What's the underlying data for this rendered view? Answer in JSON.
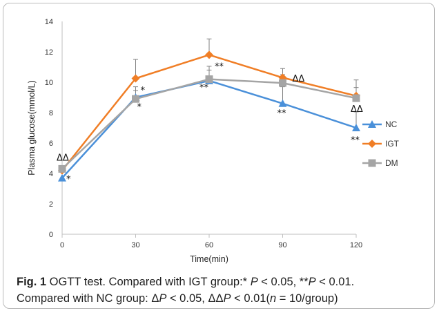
{
  "chart_data": {
    "type": "line",
    "x": [
      0,
      30,
      60,
      90,
      120
    ],
    "xlabel": "Time(min)",
    "ylabel": "Plasma glucose(mmol/L)",
    "ylim": [
      0,
      14
    ],
    "yticks": [
      0,
      2,
      4,
      6,
      8,
      10,
      12,
      14
    ],
    "xticks": [
      0,
      30,
      60,
      90,
      120
    ],
    "legend_position": "right",
    "series": [
      {
        "name": "NC",
        "color": "#4a90d9",
        "marker": "triangle",
        "values": [
          3.7,
          9.0,
          10.1,
          8.6,
          7.0
        ],
        "errors": [
          0.0,
          0.7,
          0.7,
          1.1,
          1.05
        ]
      },
      {
        "name": "IGT",
        "color": "#f07e26",
        "marker": "diamond",
        "values": [
          4.2,
          10.25,
          11.8,
          10.3,
          9.1
        ],
        "errors": [
          0.0,
          1.25,
          1.05,
          0.6,
          0.55
        ]
      },
      {
        "name": "DM",
        "color": "#a5a5a5",
        "marker": "square",
        "values": [
          4.3,
          8.9,
          10.2,
          9.95,
          8.95
        ],
        "errors": [
          0.0,
          0.55,
          0.85,
          0.55,
          1.2
        ]
      }
    ],
    "annotations": [
      {
        "text": "ΔΔ",
        "x": 0,
        "y": 4.3
      },
      {
        "text": "*",
        "x": 0,
        "y": 3.7
      },
      {
        "text": "*",
        "x": 30,
        "y": 9.0
      },
      {
        "text": "*",
        "x": 30,
        "y": 8.9
      },
      {
        "text": "**",
        "x": 60,
        "y": 10.2
      },
      {
        "text": "**",
        "x": 60,
        "y": 10.1
      },
      {
        "text": "ΔΔ",
        "x": 90,
        "y": 9.95
      },
      {
        "text": "**",
        "x": 90,
        "y": 8.6
      },
      {
        "text": "ΔΔ",
        "x": 120,
        "y": 8.95
      },
      {
        "text": "**",
        "x": 120,
        "y": 7.0
      }
    ]
  },
  "caption": {
    "fig_label": "Fig. 1",
    "line1_a": " OGTT test. Compared with IGT group:* ",
    "p1": "P",
    "line1_b": " < 0.05, **",
    "p2": "P",
    "line1_c": " < 0.01.",
    "line2_a": "Compared with NC group: Δ",
    "p3": "P",
    "line2_b": " < 0.05, ΔΔ",
    "p4": "P",
    "line2_c": " < 0.01(",
    "n": "n",
    "line2_d": " = 10/group)"
  }
}
